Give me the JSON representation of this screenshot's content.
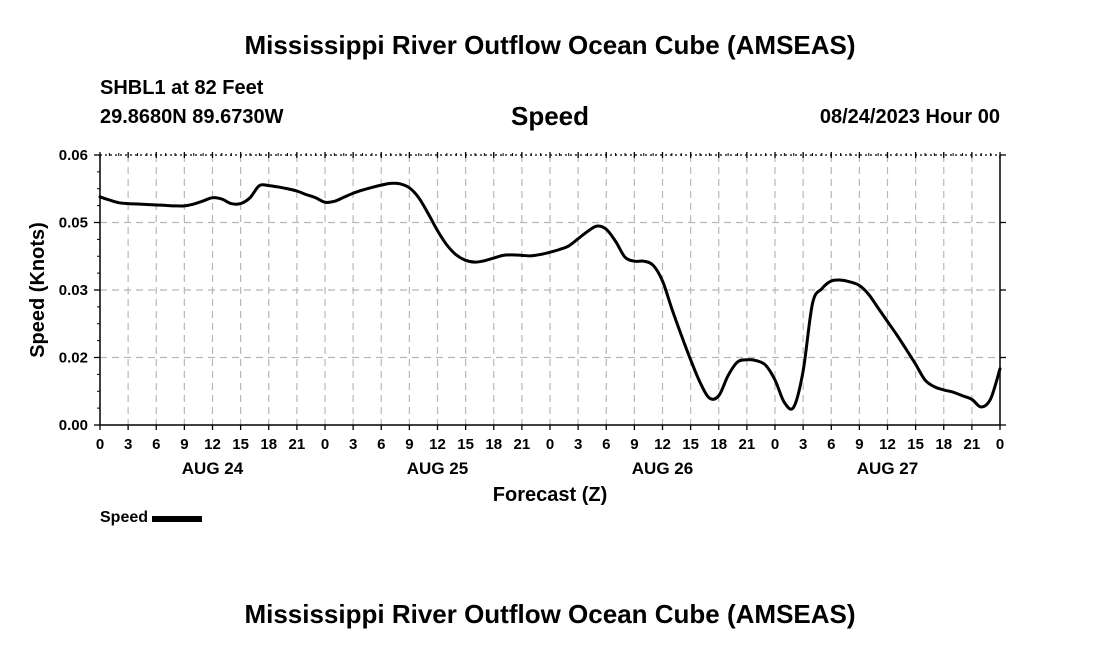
{
  "header": {
    "title": "Mississippi River Outflow Ocean Cube (AMSEAS)",
    "station": "SHBL1 at 82 Feet",
    "coords": "29.8680N  89.6730W",
    "parameter": "Speed",
    "issued": "08/24/2023 Hour 00"
  },
  "footer": {
    "title": "Mississippi River Outflow Ocean Cube (AMSEAS)"
  },
  "legend": {
    "label": "Speed"
  },
  "chart_data": {
    "type": "line",
    "title": "Speed",
    "xlabel": "Forecast (Z)",
    "ylabel": "Speed (Knots)",
    "xlim": [
      0,
      96
    ],
    "ylim": [
      0,
      0.06
    ],
    "yticks": [
      "0.00",
      "0.02",
      "0.03",
      "0.05",
      "0.06"
    ],
    "ytick_values": [
      0,
      0.015,
      0.03,
      0.045,
      0.06
    ],
    "xtick_labels": [
      "0",
      "3",
      "6",
      "9",
      "12",
      "15",
      "18",
      "21",
      "0",
      "3",
      "6",
      "9",
      "12",
      "15",
      "18",
      "21",
      "0",
      "3",
      "6",
      "9",
      "12",
      "15",
      "18",
      "21",
      "0",
      "3",
      "6",
      "9",
      "12",
      "15",
      "18",
      "21",
      "0"
    ],
    "day_labels": [
      {
        "label": "AUG 24",
        "at": 12
      },
      {
        "label": "AUG 25",
        "at": 36
      },
      {
        "label": "AUG 26",
        "at": 60
      },
      {
        "label": "AUG 27",
        "at": 84
      }
    ],
    "grid": true,
    "series": [
      {
        "name": "Speed",
        "x": [
          0,
          1,
          2,
          3,
          4,
          5,
          6,
          7,
          8,
          9,
          10,
          11,
          12,
          13,
          14,
          15,
          16,
          17,
          18,
          19,
          20,
          21,
          22,
          23,
          24,
          25,
          26,
          27,
          28,
          29,
          30,
          31,
          32,
          33,
          34,
          35,
          36,
          37,
          38,
          39,
          40,
          41,
          42,
          43,
          44,
          45,
          46,
          47,
          48,
          49,
          50,
          51,
          52,
          53,
          54,
          55,
          56,
          57,
          58,
          59,
          60,
          61,
          62,
          63,
          64,
          65,
          66,
          67,
          68,
          69,
          70,
          71,
          72,
          73,
          74,
          75,
          76,
          77,
          78,
          79,
          80,
          81,
          82,
          83,
          84,
          85,
          86,
          87,
          88,
          89,
          90,
          91,
          92,
          93,
          94,
          95,
          96
        ],
        "values": [
          0.0507,
          0.05,
          0.0494,
          0.0492,
          0.0491,
          0.049,
          0.0489,
          0.0488,
          0.0487,
          0.0487,
          0.0491,
          0.0498,
          0.0505,
          0.0502,
          0.0492,
          0.0492,
          0.0505,
          0.0532,
          0.0532,
          0.0529,
          0.0525,
          0.052,
          0.0512,
          0.0505,
          0.0495,
          0.0497,
          0.0506,
          0.0515,
          0.0522,
          0.0528,
          0.0533,
          0.0537,
          0.0536,
          0.0527,
          0.0505,
          0.047,
          0.0432,
          0.04,
          0.0378,
          0.0366,
          0.0362,
          0.0365,
          0.0371,
          0.0377,
          0.0378,
          0.0377,
          0.0376,
          0.0379,
          0.0384,
          0.039,
          0.0398,
          0.0414,
          0.043,
          0.0442,
          0.0435,
          0.0408,
          0.0373,
          0.0364,
          0.0364,
          0.0355,
          0.032,
          0.0258,
          0.02,
          0.0145,
          0.0095,
          0.006,
          0.0065,
          0.011,
          0.014,
          0.0145,
          0.0143,
          0.0133,
          0.01,
          0.005,
          0.004,
          0.012,
          0.027,
          0.0303,
          0.032,
          0.0322,
          0.0318,
          0.031,
          0.029,
          0.026,
          0.023,
          0.02,
          0.0168,
          0.0135,
          0.01,
          0.0085,
          0.0078,
          0.0073,
          0.0065,
          0.0057,
          0.004,
          0.0058,
          0.0125
        ]
      }
    ]
  }
}
